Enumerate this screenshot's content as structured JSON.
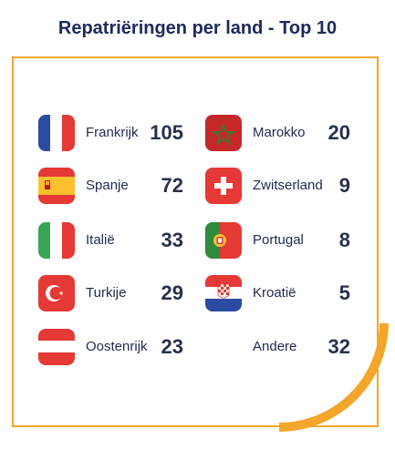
{
  "title": "Repatriëringen per land - Top 10",
  "left": [
    {
      "name": "Frankrijk",
      "count": "105",
      "flag": "france-flag-icon"
    },
    {
      "name": "Spanje",
      "count": "72",
      "flag": "spain-flag-icon"
    },
    {
      "name": "Italië",
      "count": "33",
      "flag": "italy-flag-icon"
    },
    {
      "name": "Turkije",
      "count": "29",
      "flag": "turkey-flag-icon"
    },
    {
      "name": "Oostenrijk",
      "count": "23",
      "flag": "austria-flag-icon"
    }
  ],
  "right": [
    {
      "name": "Marokko",
      "count": "20",
      "flag": "morocco-flag-icon"
    },
    {
      "name": "Zwitserland",
      "count": "9",
      "flag": "switzerland-flag-icon"
    },
    {
      "name": "Portugal",
      "count": "8",
      "flag": "portugal-flag-icon"
    },
    {
      "name": "Kroatië",
      "count": "5",
      "flag": "croatia-flag-icon"
    },
    {
      "name": "Andere",
      "count": "32"
    }
  ],
  "colors": {
    "accent": "#f4a62a",
    "title": "#1c2a5c",
    "text": "#1f2a4f"
  }
}
